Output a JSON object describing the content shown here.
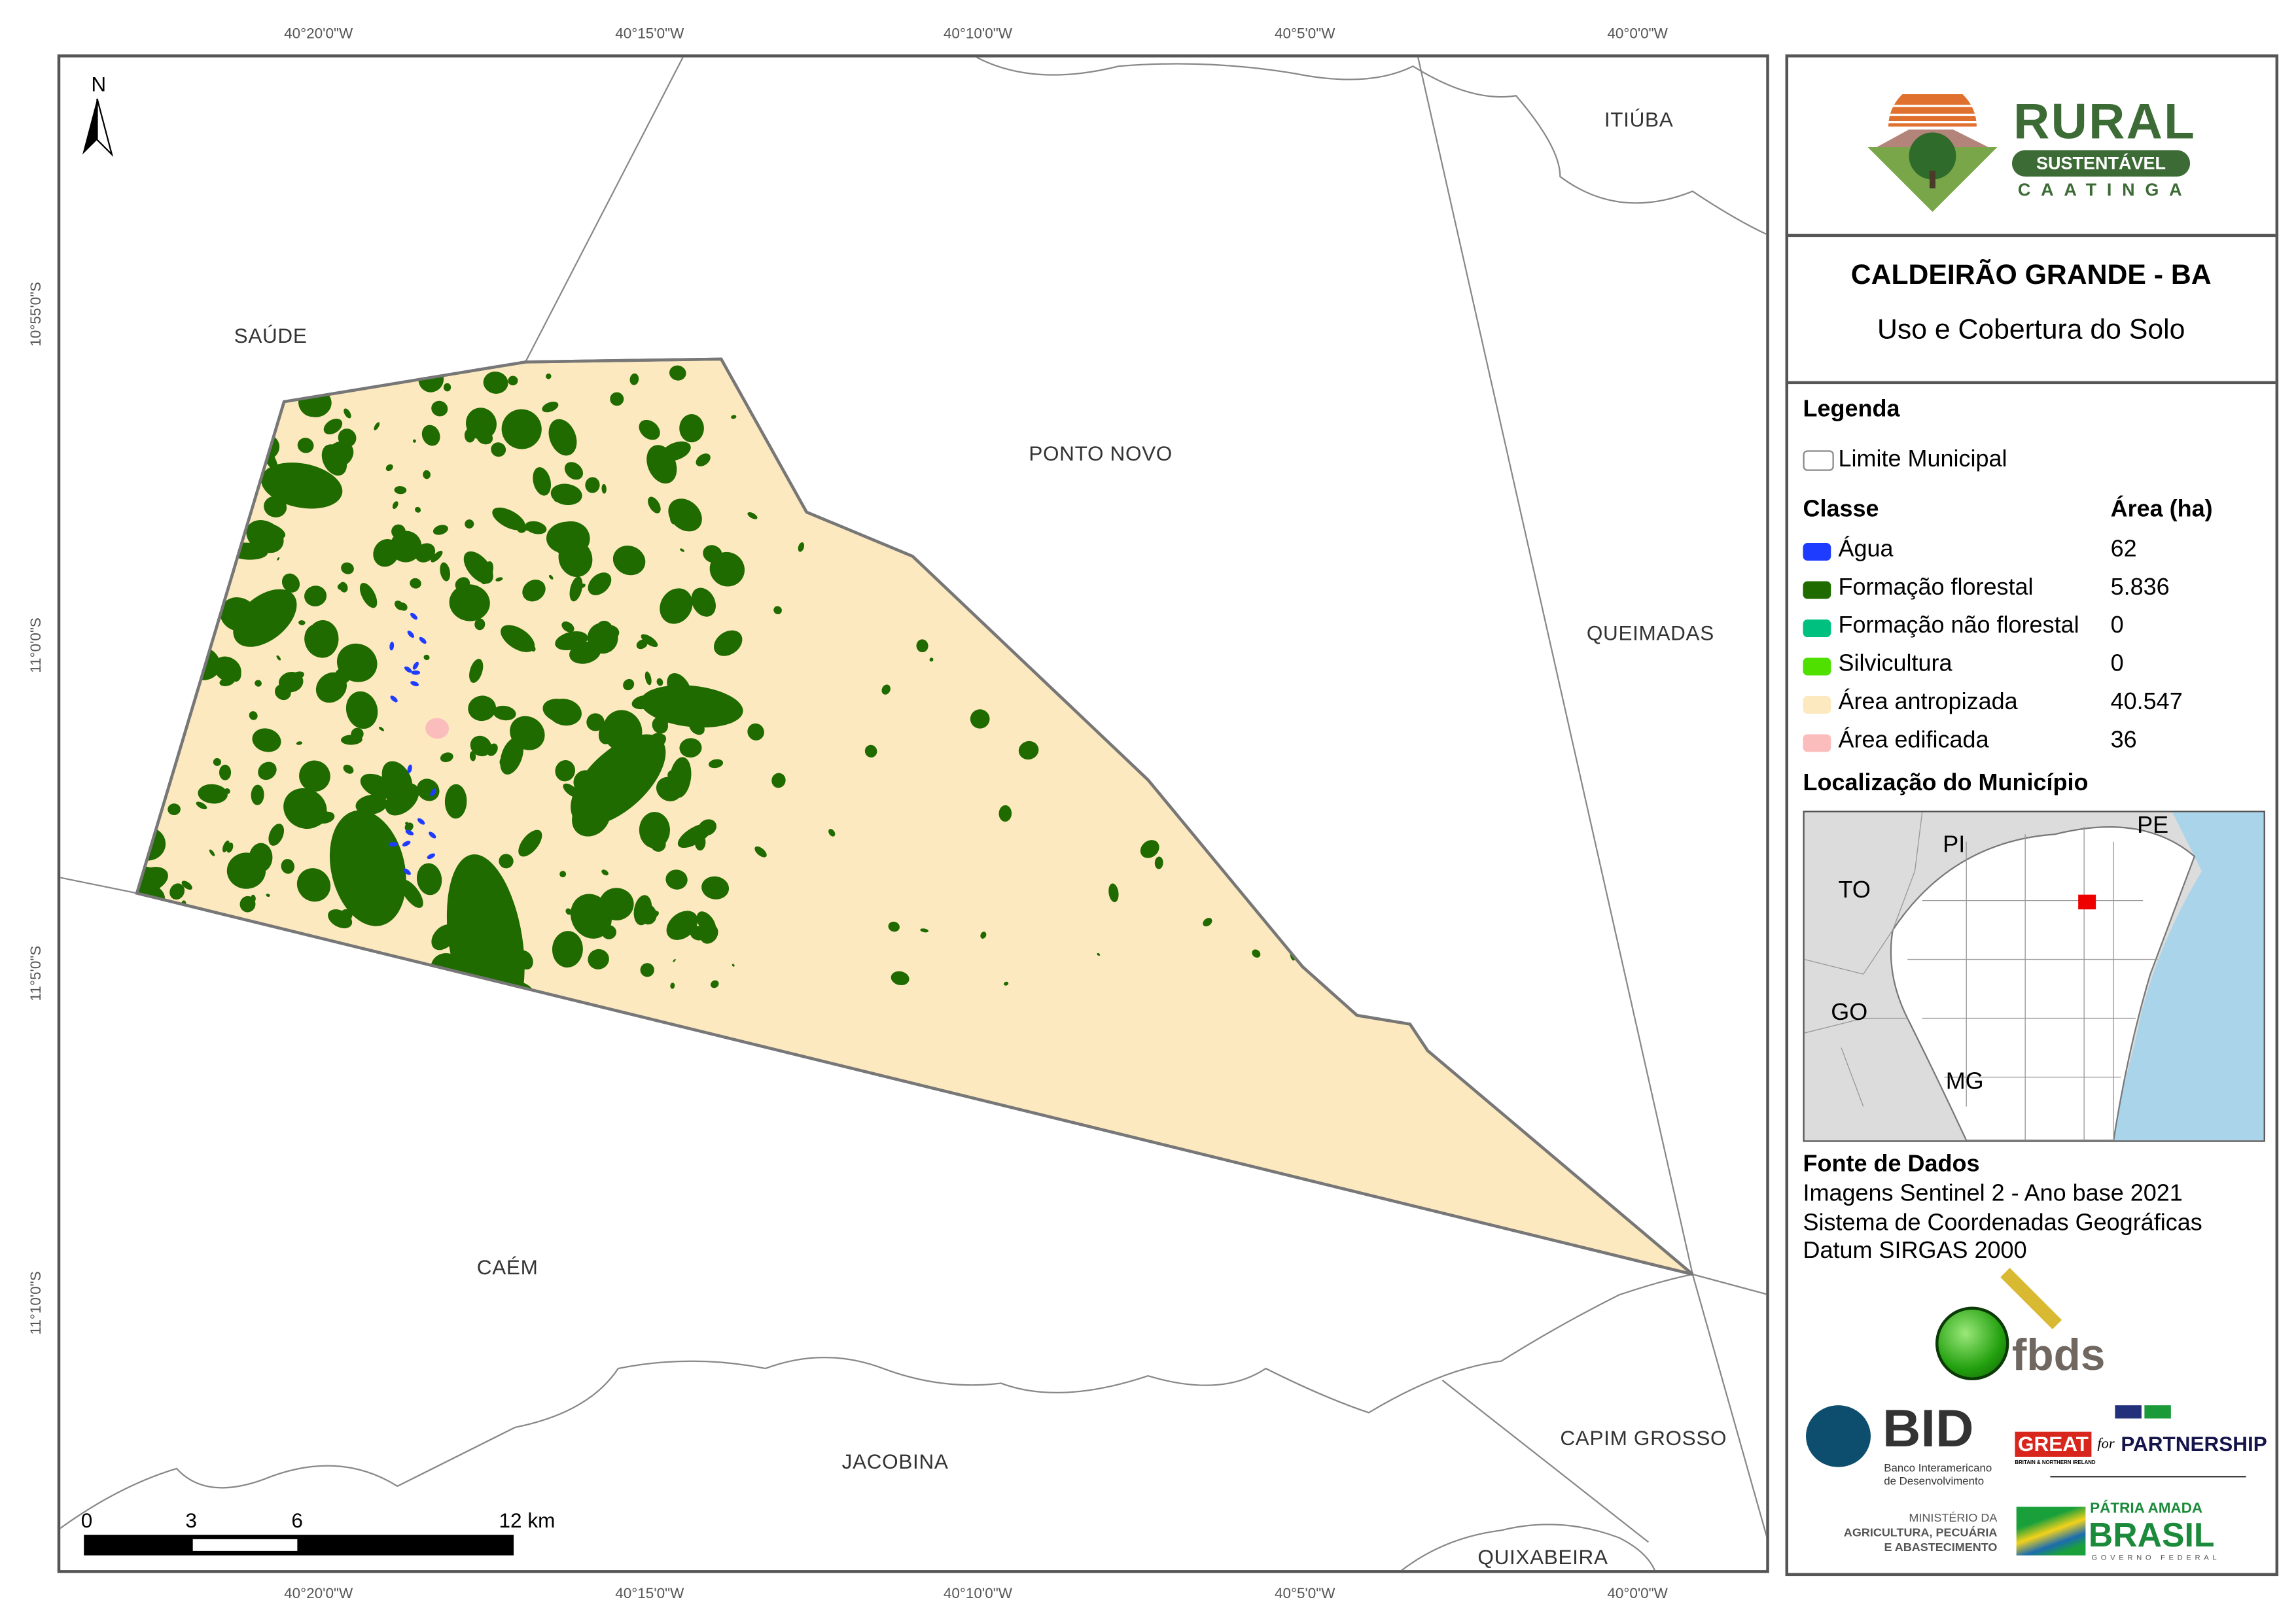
{
  "map": {
    "north_label": "N",
    "top_ticks": [
      "40°20'0\"W",
      "40°15'0\"W",
      "40°10'0\"W",
      "40°5'0\"W",
      "40°0'0\"W"
    ],
    "bottom_ticks": [
      "40°20'0\"W",
      "40°15'0\"W",
      "40°10'0\"W",
      "40°5'0\"W",
      "40°0'0\"W"
    ],
    "left_ticks": [
      "10°55'0\"S",
      "11°0'0\"S",
      "11°5'0\"S",
      "11°10'0\"S"
    ],
    "places": [
      "SAÚDE",
      "PONTO NOVO",
      "ITIÚBA",
      "QUEIMADAS",
      "CAÉM",
      "JACOBINA",
      "CAPIM GROSSO",
      "QUIXABEIRA"
    ],
    "scale_labels": [
      "0",
      "3",
      "6",
      "12 km"
    ]
  },
  "panel": {
    "logo": {
      "title": "RURAL",
      "badge": "SUSTENTÁVEL",
      "sub": "CAATINGA"
    },
    "title": "CALDEIRÃO GRANDE - BA",
    "subtitle": "Uso e Cobertura do Solo",
    "legend": {
      "heading": "Legenda",
      "boundary_label": "Limite Municipal",
      "class_header": "Classe",
      "area_header": "Área (ha)",
      "classes": [
        {
          "label": "Água",
          "area": "62",
          "color": "#1e3cff"
        },
        {
          "label": "Formação florestal",
          "area": "5.836",
          "color": "#1f6b00"
        },
        {
          "label": "Formação não florestal",
          "area": "0",
          "color": "#00c07f"
        },
        {
          "label": "Silvicultura",
          "area": "0",
          "color": "#4fe000"
        },
        {
          "label": "Área antropizada",
          "area": "40.547",
          "color": "#fde9c0"
        },
        {
          "label": "Área edificada",
          "area": "36",
          "color": "#fbbcbc"
        }
      ]
    },
    "location": {
      "heading": "Localização do Município",
      "states": [
        "PI",
        "PE",
        "TO",
        "GO",
        "MG"
      ]
    },
    "sources": {
      "heading": "Fonte de Dados",
      "lines": [
        "Imagens Sentinel 2 - Ano base 2021",
        "Sistema de Coordenadas Geográficas",
        "Datum SIRGAS 2000"
      ]
    },
    "logos": {
      "fbds": "fbds",
      "bid": "BID",
      "bid_sub1": "Banco Interamericano",
      "bid_sub2": "de Desenvolvimento",
      "great": "GREAT",
      "great_for": "for",
      "great_partner": "PARTNERSHIP",
      "great_sub": "BRITAIN & NORTHERN IRELAND",
      "mapa1": "MINISTÉRIO DA",
      "mapa2": "AGRICULTURA, PECUÁRIA",
      "mapa3": "E ABASTECIMENTO",
      "brasil1": "PÁTRIA AMADA",
      "brasil2": "BRASIL",
      "brasil3": "GOVERNO FEDERAL"
    }
  }
}
